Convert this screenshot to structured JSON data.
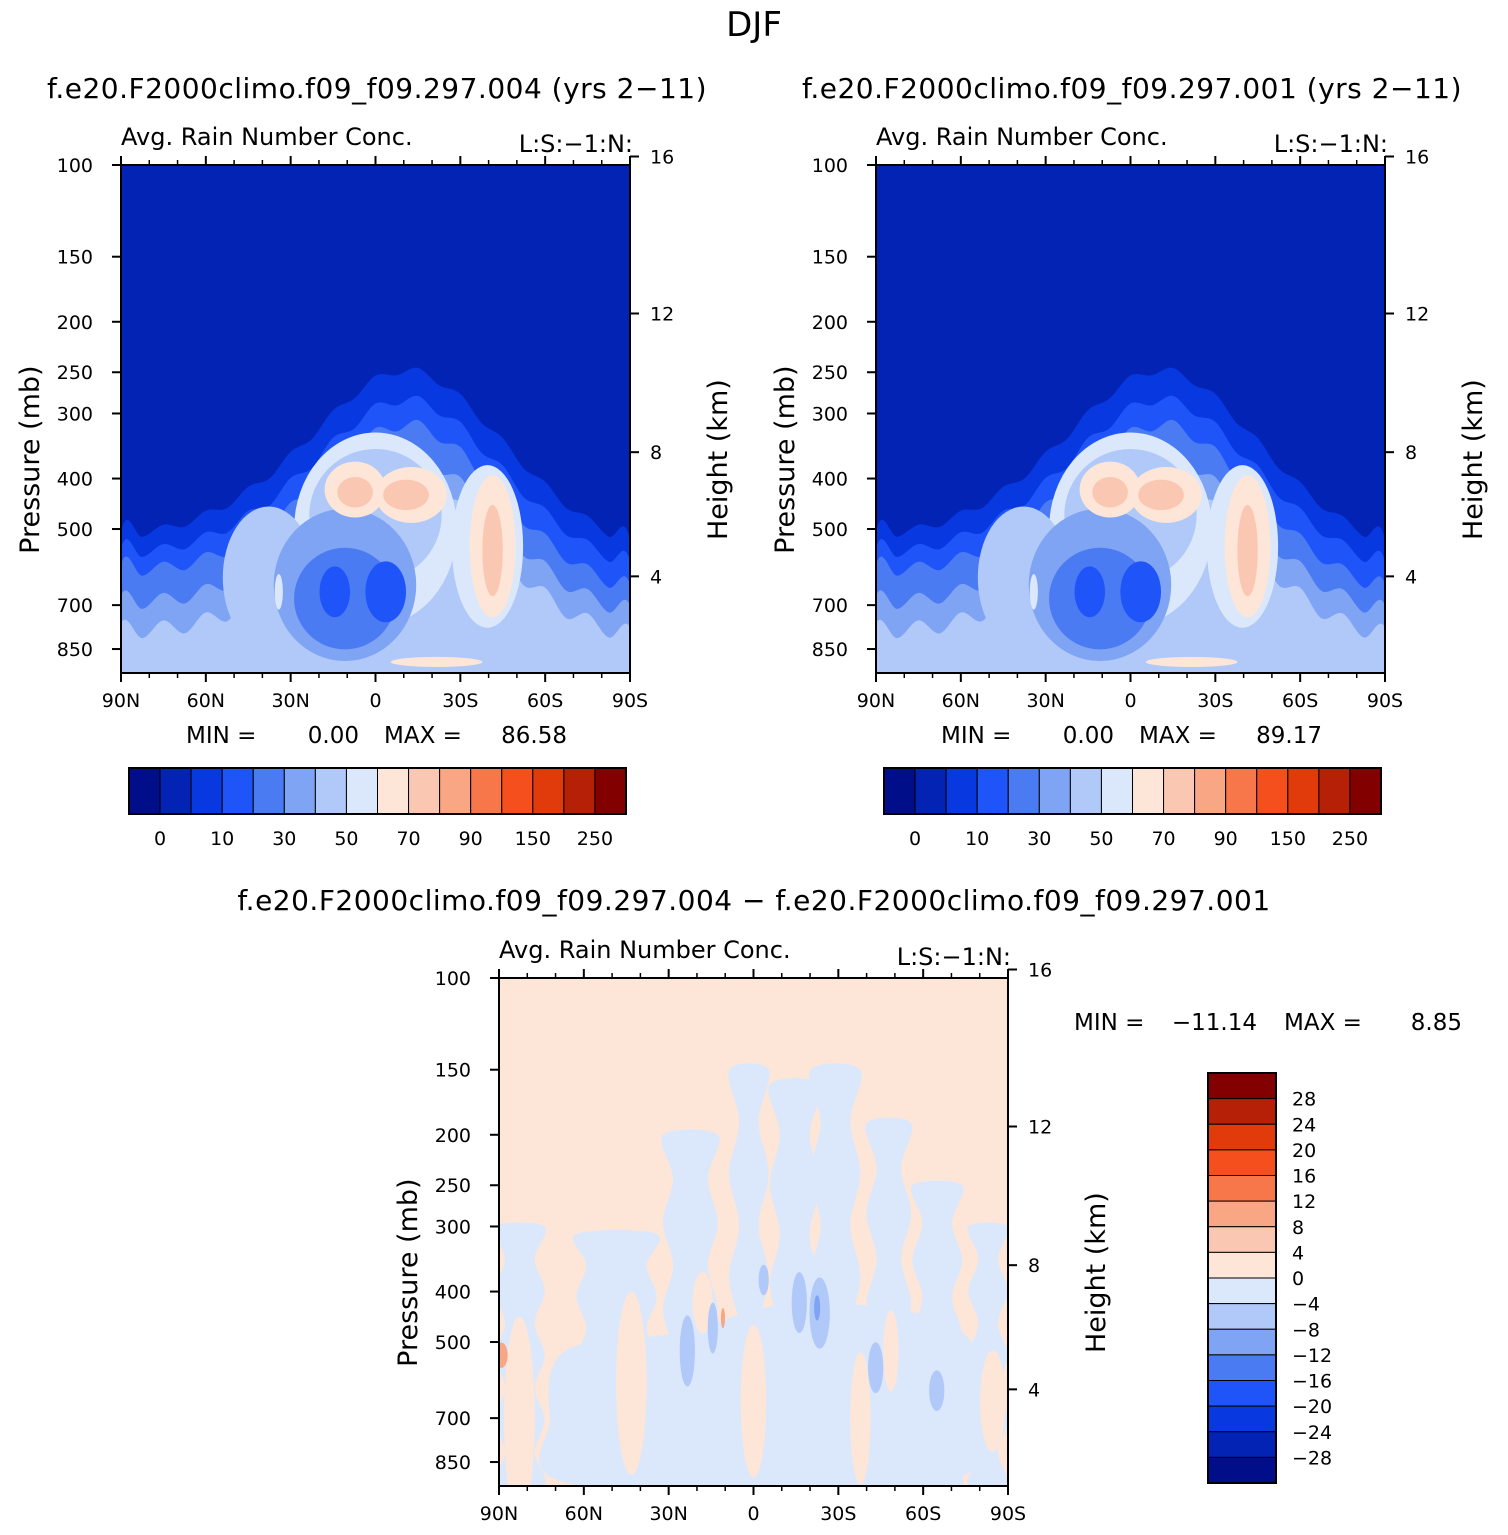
{
  "figure": {
    "title": "DJF",
    "run_a": "f.e20.F2000climo.f09_f09.297.004",
    "run_b": "f.e20.F2000climo.f09_f09.297.001",
    "years": "(yrs 2−11)",
    "diff_title": "f.e20.F2000climo.f09_f09.297.004 − f.e20.F2000climo.f09_f09.297.001"
  },
  "chart_data": [
    {
      "type": "heatmap",
      "name": "panel-a",
      "case_title": "f.e20.F2000climo.f09_f09.297.004 (yrs 2−11)",
      "variable_title": "Avg. Rain Number Conc.",
      "variable_code": "L:S:−1:N:",
      "xlabel": "",
      "ylabel": "Pressure (mb)",
      "y2label": "Height (km)",
      "x_ticks": [
        "90N",
        "60N",
        "30N",
        "0",
        "30S",
        "60S",
        "90S"
      ],
      "y_ticks": [
        100,
        150,
        200,
        250,
        300,
        400,
        500,
        700,
        850
      ],
      "y2_ticks": [
        16,
        12,
        8,
        4
      ],
      "min_label": "MIN =",
      "min": "0.00",
      "max_label": "MAX =",
      "max": "86.58",
      "colorbar_ticks": [
        "0",
        "10",
        "30",
        "50",
        "70",
        "90",
        "150",
        "250"
      ],
      "colorbar_colors": [
        "#000e8a",
        "#0323b5",
        "#0838e0",
        "#1f55f8",
        "#4a7bf2",
        "#7fa4f4",
        "#b1c9f8",
        "#dbe8fb",
        "#fde6d8",
        "#fac8b2",
        "#f8a683",
        "#f7774b",
        "#f44f1c",
        "#e13a0b",
        "#b62006",
        "#820000"
      ],
      "contour_levels": [
        "~0",
        "~5",
        "~10",
        "~20",
        "~30",
        "~40",
        "~50",
        "~60",
        "~70"
      ]
    },
    {
      "type": "heatmap",
      "name": "panel-b",
      "case_title": "f.e20.F2000climo.f09_f09.297.001 (yrs 2−11)",
      "variable_title": "Avg. Rain Number Conc.",
      "variable_code": "L:S:−1:N:",
      "xlabel": "",
      "ylabel": "Pressure (mb)",
      "y2label": "Height (km)",
      "x_ticks": [
        "90N",
        "60N",
        "30N",
        "0",
        "30S",
        "60S",
        "90S"
      ],
      "y_ticks": [
        100,
        150,
        200,
        250,
        300,
        400,
        500,
        700,
        850
      ],
      "y2_ticks": [
        16,
        12,
        8,
        4
      ],
      "min_label": "MIN =",
      "min": "0.00",
      "max_label": "MAX =",
      "max": "89.17",
      "colorbar_ticks": [
        "0",
        "10",
        "30",
        "50",
        "70",
        "90",
        "150",
        "250"
      ],
      "colorbar_colors": [
        "#000e8a",
        "#0323b5",
        "#0838e0",
        "#1f55f8",
        "#4a7bf2",
        "#7fa4f4",
        "#b1c9f8",
        "#dbe8fb",
        "#fde6d8",
        "#fac8b2",
        "#f8a683",
        "#f7774b",
        "#f44f1c",
        "#e13a0b",
        "#b62006",
        "#820000"
      ],
      "contour_levels": [
        "~0",
        "~5",
        "~10",
        "~20",
        "~30",
        "~40",
        "~50",
        "~60",
        "~70"
      ]
    },
    {
      "type": "heatmap",
      "name": "panel-diff",
      "case_title": "f.e20.F2000climo.f09_f09.297.004 − f.e20.F2000climo.f09_f09.297.001",
      "variable_title": "Avg. Rain Number Conc.",
      "variable_code": "L:S:−1:N:",
      "xlabel": "",
      "ylabel": "Pressure (mb)",
      "y2label": "Height (km)",
      "x_ticks": [
        "90N",
        "60N",
        "30N",
        "0",
        "30S",
        "60S",
        "90S"
      ],
      "y_ticks": [
        100,
        150,
        200,
        250,
        300,
        400,
        500,
        700,
        850
      ],
      "y2_ticks": [
        16,
        12,
        8,
        4
      ],
      "min_label": "MIN =",
      "min": "−11.14",
      "max_label": "MAX =",
      "max": "8.85",
      "colorbar_ticks": [
        "28",
        "24",
        "20",
        "16",
        "12",
        "8",
        "4",
        "0",
        "−4",
        "−8",
        "−12",
        "−16",
        "−20",
        "−24",
        "−28"
      ],
      "colorbar_colors": [
        "#820000",
        "#b62006",
        "#e13a0b",
        "#f44f1c",
        "#f7774b",
        "#f8a683",
        "#fac8b2",
        "#fde6d8",
        "#dbe8fb",
        "#b1c9f8",
        "#7fa4f4",
        "#4a7bf2",
        "#1f55f8",
        "#0838e0",
        "#0323b5",
        "#000e8a"
      ]
    }
  ],
  "colors": {
    "background": "#000e8a",
    "level1": "#0323b5",
    "level2": "#0838e0",
    "level3": "#1f55f8",
    "level4": "#4a7bf2",
    "level5": "#7fa4f4",
    "level6": "#b1c9f8",
    "level7": "#dbe8fb",
    "level8": "#fde6d8",
    "level9": "#fac8b2",
    "level10": "#f8a683",
    "diff_positive": "#fde6d8",
    "diff_negative": "#dbe8fb",
    "diff_neg2": "#b1c9f8",
    "diff_neg3": "#7fa4f4",
    "diff_pos2": "#fac8b2",
    "diff_pos3": "#f8a683"
  }
}
